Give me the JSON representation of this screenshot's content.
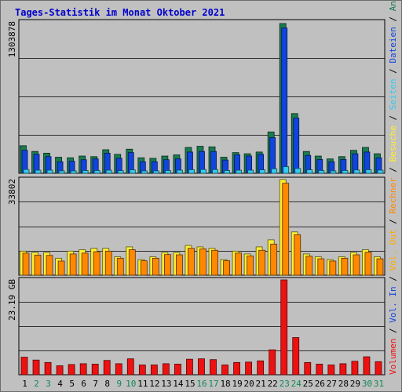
{
  "title": "Tages-Statistik im Monat Oktober 2021",
  "colors": {
    "background": "#c0c0c0",
    "title": "#0000cc",
    "anfragen": "#1a7a50",
    "dateien": "#1144dd",
    "seiten": "#33ccee",
    "besuche": "#ffee33",
    "rechner": "#ff8800",
    "vol_out": "#ffaa00",
    "vol_in": "#1144dd",
    "volumen": "#ee1111",
    "weekend_day": "#118855",
    "weekday": "#000000",
    "grid": "#000000"
  },
  "legend": [
    {
      "key": "anfragen",
      "text": "Anfragen"
    },
    {
      "key": "dateien",
      "text": "Dateien"
    },
    {
      "key": "seiten",
      "text": "Seiten"
    },
    {
      "key": "besuche",
      "text": "Besuche"
    },
    {
      "key": "rechner",
      "text": "Rechner"
    },
    {
      "key": "vol_out",
      "text": "Vol. Out"
    },
    {
      "key": "vol_in",
      "text": "Vol. In"
    },
    {
      "key": "volumen",
      "text": "Volumen"
    }
  ],
  "legend_separator": " / ",
  "chart_data": [
    {
      "type": "bar",
      "panel": "requests",
      "ymax_label": "1303878",
      "ylim": [
        0,
        1303878
      ],
      "categories": [
        "1",
        "2",
        "3",
        "4",
        "5",
        "6",
        "7",
        "8",
        "9",
        "10",
        "11",
        "12",
        "13",
        "14",
        "15",
        "16",
        "17",
        "18",
        "19",
        "20",
        "21",
        "22",
        "23",
        "24",
        "25",
        "26",
        "27",
        "28",
        "29",
        "30",
        "31"
      ],
      "weekend": [
        false,
        true,
        true,
        false,
        false,
        false,
        false,
        false,
        true,
        true,
        false,
        false,
        false,
        false,
        false,
        true,
        true,
        false,
        false,
        false,
        false,
        false,
        true,
        true,
        false,
        false,
        false,
        false,
        false,
        true,
        true
      ],
      "series": [
        {
          "name": "Anfragen",
          "values": [
            240000,
            190000,
            175000,
            140000,
            135000,
            150000,
            145000,
            205000,
            165000,
            210000,
            135000,
            130000,
            150000,
            160000,
            225000,
            235000,
            230000,
            140000,
            180000,
            170000,
            185000,
            360000,
            1303878,
            520000,
            190000,
            150000,
            125000,
            145000,
            200000,
            225000,
            170000
          ]
        },
        {
          "name": "Dateien",
          "values": [
            200000,
            165000,
            145000,
            100000,
            105000,
            118000,
            125000,
            175000,
            130000,
            180000,
            100000,
            100000,
            118000,
            125000,
            185000,
            190000,
            190000,
            115000,
            160000,
            150000,
            165000,
            310000,
            1265000,
            480000,
            155000,
            120000,
            100000,
            120000,
            170000,
            185000,
            135000
          ]
        },
        {
          "name": "Seiten",
          "values": [
            55000,
            45000,
            45000,
            35000,
            35000,
            40000,
            40000,
            45000,
            38000,
            50000,
            35000,
            35000,
            40000,
            45000,
            52000,
            55000,
            54000,
            40000,
            45000,
            45000,
            50000,
            65000,
            95000,
            70000,
            50000,
            40000,
            35000,
            40000,
            48000,
            52000,
            45000
          ]
        }
      ]
    },
    {
      "type": "bar",
      "panel": "visits",
      "ymax_label": "33802",
      "ylim": [
        0,
        33802
      ],
      "categories": [
        "1",
        "2",
        "3",
        "4",
        "5",
        "6",
        "7",
        "8",
        "9",
        "10",
        "11",
        "12",
        "13",
        "14",
        "15",
        "16",
        "17",
        "18",
        "19",
        "20",
        "21",
        "22",
        "23",
        "24",
        "25",
        "26",
        "27",
        "28",
        "29",
        "30",
        "31"
      ],
      "series": [
        {
          "name": "Besuche",
          "values": [
            8500,
            8000,
            8000,
            6000,
            8500,
            9000,
            9500,
            9500,
            6500,
            10000,
            5500,
            6500,
            8000,
            8000,
            10500,
            10000,
            9500,
            5500,
            8500,
            7500,
            10000,
            12500,
            33802,
            15300,
            7500,
            6500,
            5500,
            6500,
            8000,
            9000,
            6500
          ]
        },
        {
          "name": "Rechner",
          "values": [
            7800,
            7100,
            7000,
            5000,
            7500,
            7800,
            8300,
            8500,
            6000,
            9000,
            5100,
            6000,
            7300,
            7200,
            9500,
            9300,
            8800,
            5100,
            7800,
            6800,
            8800,
            11000,
            32500,
            14300,
            6700,
            5800,
            5000,
            6000,
            7200,
            8100,
            5800
          ]
        }
      ]
    },
    {
      "type": "bar",
      "panel": "volume",
      "ymax_label": "23.19 GB",
      "ylim": [
        0,
        23.19
      ],
      "categories": [
        "1",
        "2",
        "3",
        "4",
        "5",
        "6",
        "7",
        "8",
        "9",
        "10",
        "11",
        "12",
        "13",
        "14",
        "15",
        "16",
        "17",
        "18",
        "19",
        "20",
        "21",
        "22",
        "23",
        "24",
        "25",
        "26",
        "27",
        "28",
        "29",
        "30",
        "31"
      ],
      "series": [
        {
          "name": "Volumen",
          "values": [
            4.3,
            3.6,
            3.0,
            2.2,
            2.5,
            2.7,
            2.6,
            3.5,
            2.7,
            3.9,
            2.4,
            2.4,
            2.7,
            2.6,
            3.8,
            3.9,
            3.7,
            2.4,
            3.0,
            3.1,
            3.4,
            6.1,
            23.19,
            9.1,
            3.0,
            2.6,
            2.4,
            2.7,
            3.3,
            4.4,
            3.2
          ]
        }
      ]
    }
  ]
}
